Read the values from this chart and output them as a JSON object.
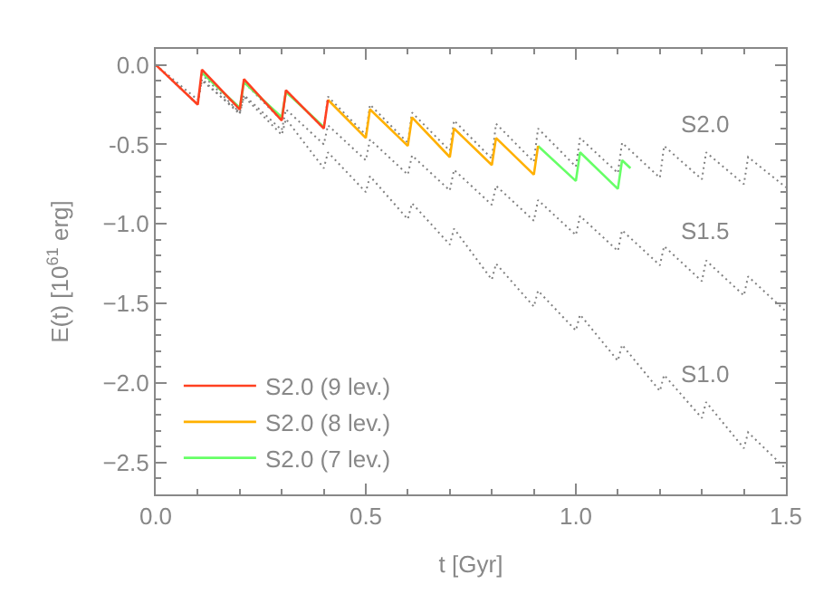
{
  "chart_data": {
    "type": "line",
    "xlabel": "t [Gyr]",
    "ylabel": "E(t) [10$^{61}$ erg]",
    "xlim": [
      0,
      1.5
    ],
    "xticks": [
      {
        "value": 0,
        "label": "0.0"
      },
      0.5,
      {
        "value": 1,
        "label": "1.0"
      },
      1.5
    ],
    "ylim": [
      -2.7,
      0.1
    ],
    "yticks": [
      {
        "value": 0,
        "label": "0.0"
      },
      -0.5,
      {
        "value": -1,
        "label": "−1.0"
      },
      {
        "value": -1.5,
        "label": "−1.5"
      },
      {
        "value": -2,
        "label": "−2.0"
      },
      {
        "value": -2.5,
        "label": "−2.5"
      }
    ],
    "legend": "bottom left",
    "marker": "none",
    "series": [
      {
        "name": "S2.0",
        "color": "#808080",
        "line_style": "dotted",
        "x": [
          0,
          0.1,
          0.11,
          0.2,
          0.21,
          0.3,
          0.31,
          0.4,
          0.41,
          0.5,
          0.51,
          0.6,
          0.61,
          0.7,
          0.71,
          0.8,
          0.81,
          0.9,
          0.91,
          1.0,
          1.01,
          1.1,
          1.11,
          1.2,
          1.21,
          1.3,
          1.31,
          1.4,
          1.41,
          1.5
        ],
        "values": [
          0,
          -0.25,
          -0.06,
          -0.3,
          -0.11,
          -0.35,
          -0.16,
          -0.4,
          -0.2,
          -0.44,
          -0.25,
          -0.49,
          -0.3,
          -0.54,
          -0.35,
          -0.59,
          -0.37,
          -0.61,
          -0.4,
          -0.64,
          -0.46,
          -0.68,
          -0.49,
          -0.71,
          -0.51,
          -0.72,
          -0.55,
          -0.75,
          -0.58,
          -0.77
        ]
      },
      {
        "name": "S1.5",
        "color": "#808080",
        "line_style": "dotted",
        "x": [
          0,
          0.1,
          0.11,
          0.2,
          0.21,
          0.3,
          0.31,
          0.4,
          0.41,
          0.5,
          0.51,
          0.6,
          0.61,
          0.7,
          0.71,
          0.8,
          0.81,
          0.9,
          0.91,
          1.0,
          1.01,
          1.1,
          1.11,
          1.2,
          1.21,
          1.3,
          1.31,
          1.4,
          1.41,
          1.5
        ],
        "values": [
          0,
          -0.25,
          -0.09,
          -0.31,
          -0.19,
          -0.41,
          -0.28,
          -0.5,
          -0.38,
          -0.6,
          -0.47,
          -0.69,
          -0.57,
          -0.79,
          -0.66,
          -0.88,
          -0.76,
          -0.98,
          -0.85,
          -1.07,
          -0.95,
          -1.17,
          -1.04,
          -1.26,
          -1.14,
          -1.36,
          -1.23,
          -1.45,
          -1.33,
          -1.55
        ]
      },
      {
        "name": "S1.0",
        "color": "#808080",
        "line_style": "dotted",
        "x": [
          0,
          0.1,
          0.11,
          0.2,
          0.21,
          0.3,
          0.31,
          0.4,
          0.41,
          0.5,
          0.51,
          0.6,
          0.61,
          0.7,
          0.71,
          0.8,
          0.81,
          0.9,
          0.91,
          1.0,
          1.01,
          1.1,
          1.11,
          1.2,
          1.21,
          1.3,
          1.31,
          1.4,
          1.41,
          1.5
        ],
        "values": [
          0,
          -0.22,
          -0.1,
          -0.3,
          -0.2,
          -0.44,
          -0.34,
          -0.65,
          -0.55,
          -0.8,
          -0.7,
          -0.97,
          -0.87,
          -1.13,
          -1.03,
          -1.35,
          -1.25,
          -1.52,
          -1.42,
          -1.67,
          -1.57,
          -1.86,
          -1.76,
          -2.05,
          -1.95,
          -2.22,
          -2.12,
          -2.41,
          -2.31,
          -2.54
        ]
      },
      {
        "name": "S2.0 (7 lev.)",
        "color": "#66ff66",
        "line_style": "solid",
        "x": [
          0.11,
          0.2,
          0.21,
          0.3,
          0.31,
          0.4,
          0.405,
          0.91,
          1.0,
          1.01,
          1.1,
          1.11,
          1.13
        ],
        "values": [
          -0.05,
          -0.27,
          -0.11,
          -0.33,
          -0.17,
          -0.39,
          null,
          -0.51,
          -0.73,
          -0.55,
          -0.78,
          -0.6,
          -0.65
        ]
      },
      {
        "name": "S2.0 (8 lev.)",
        "color": "#ffb000",
        "line_style": "solid",
        "x": [
          0.41,
          0.5,
          0.51,
          0.6,
          0.61,
          0.7,
          0.71,
          0.8,
          0.81,
          0.9,
          0.91
        ],
        "values": [
          -0.22,
          -0.46,
          -0.28,
          -0.51,
          -0.33,
          -0.58,
          -0.4,
          -0.63,
          -0.46,
          -0.69,
          -0.51
        ]
      },
      {
        "name": "S2.0 (9 lev.)",
        "color": "#ff4020",
        "line_style": "solid",
        "x": [
          0,
          0.1,
          0.11,
          0.2,
          0.21,
          0.3,
          0.31,
          0.4,
          0.41
        ],
        "values": [
          0,
          -0.25,
          -0.03,
          -0.28,
          -0.09,
          -0.35,
          -0.16,
          -0.4,
          -0.22
        ]
      }
    ]
  }
}
